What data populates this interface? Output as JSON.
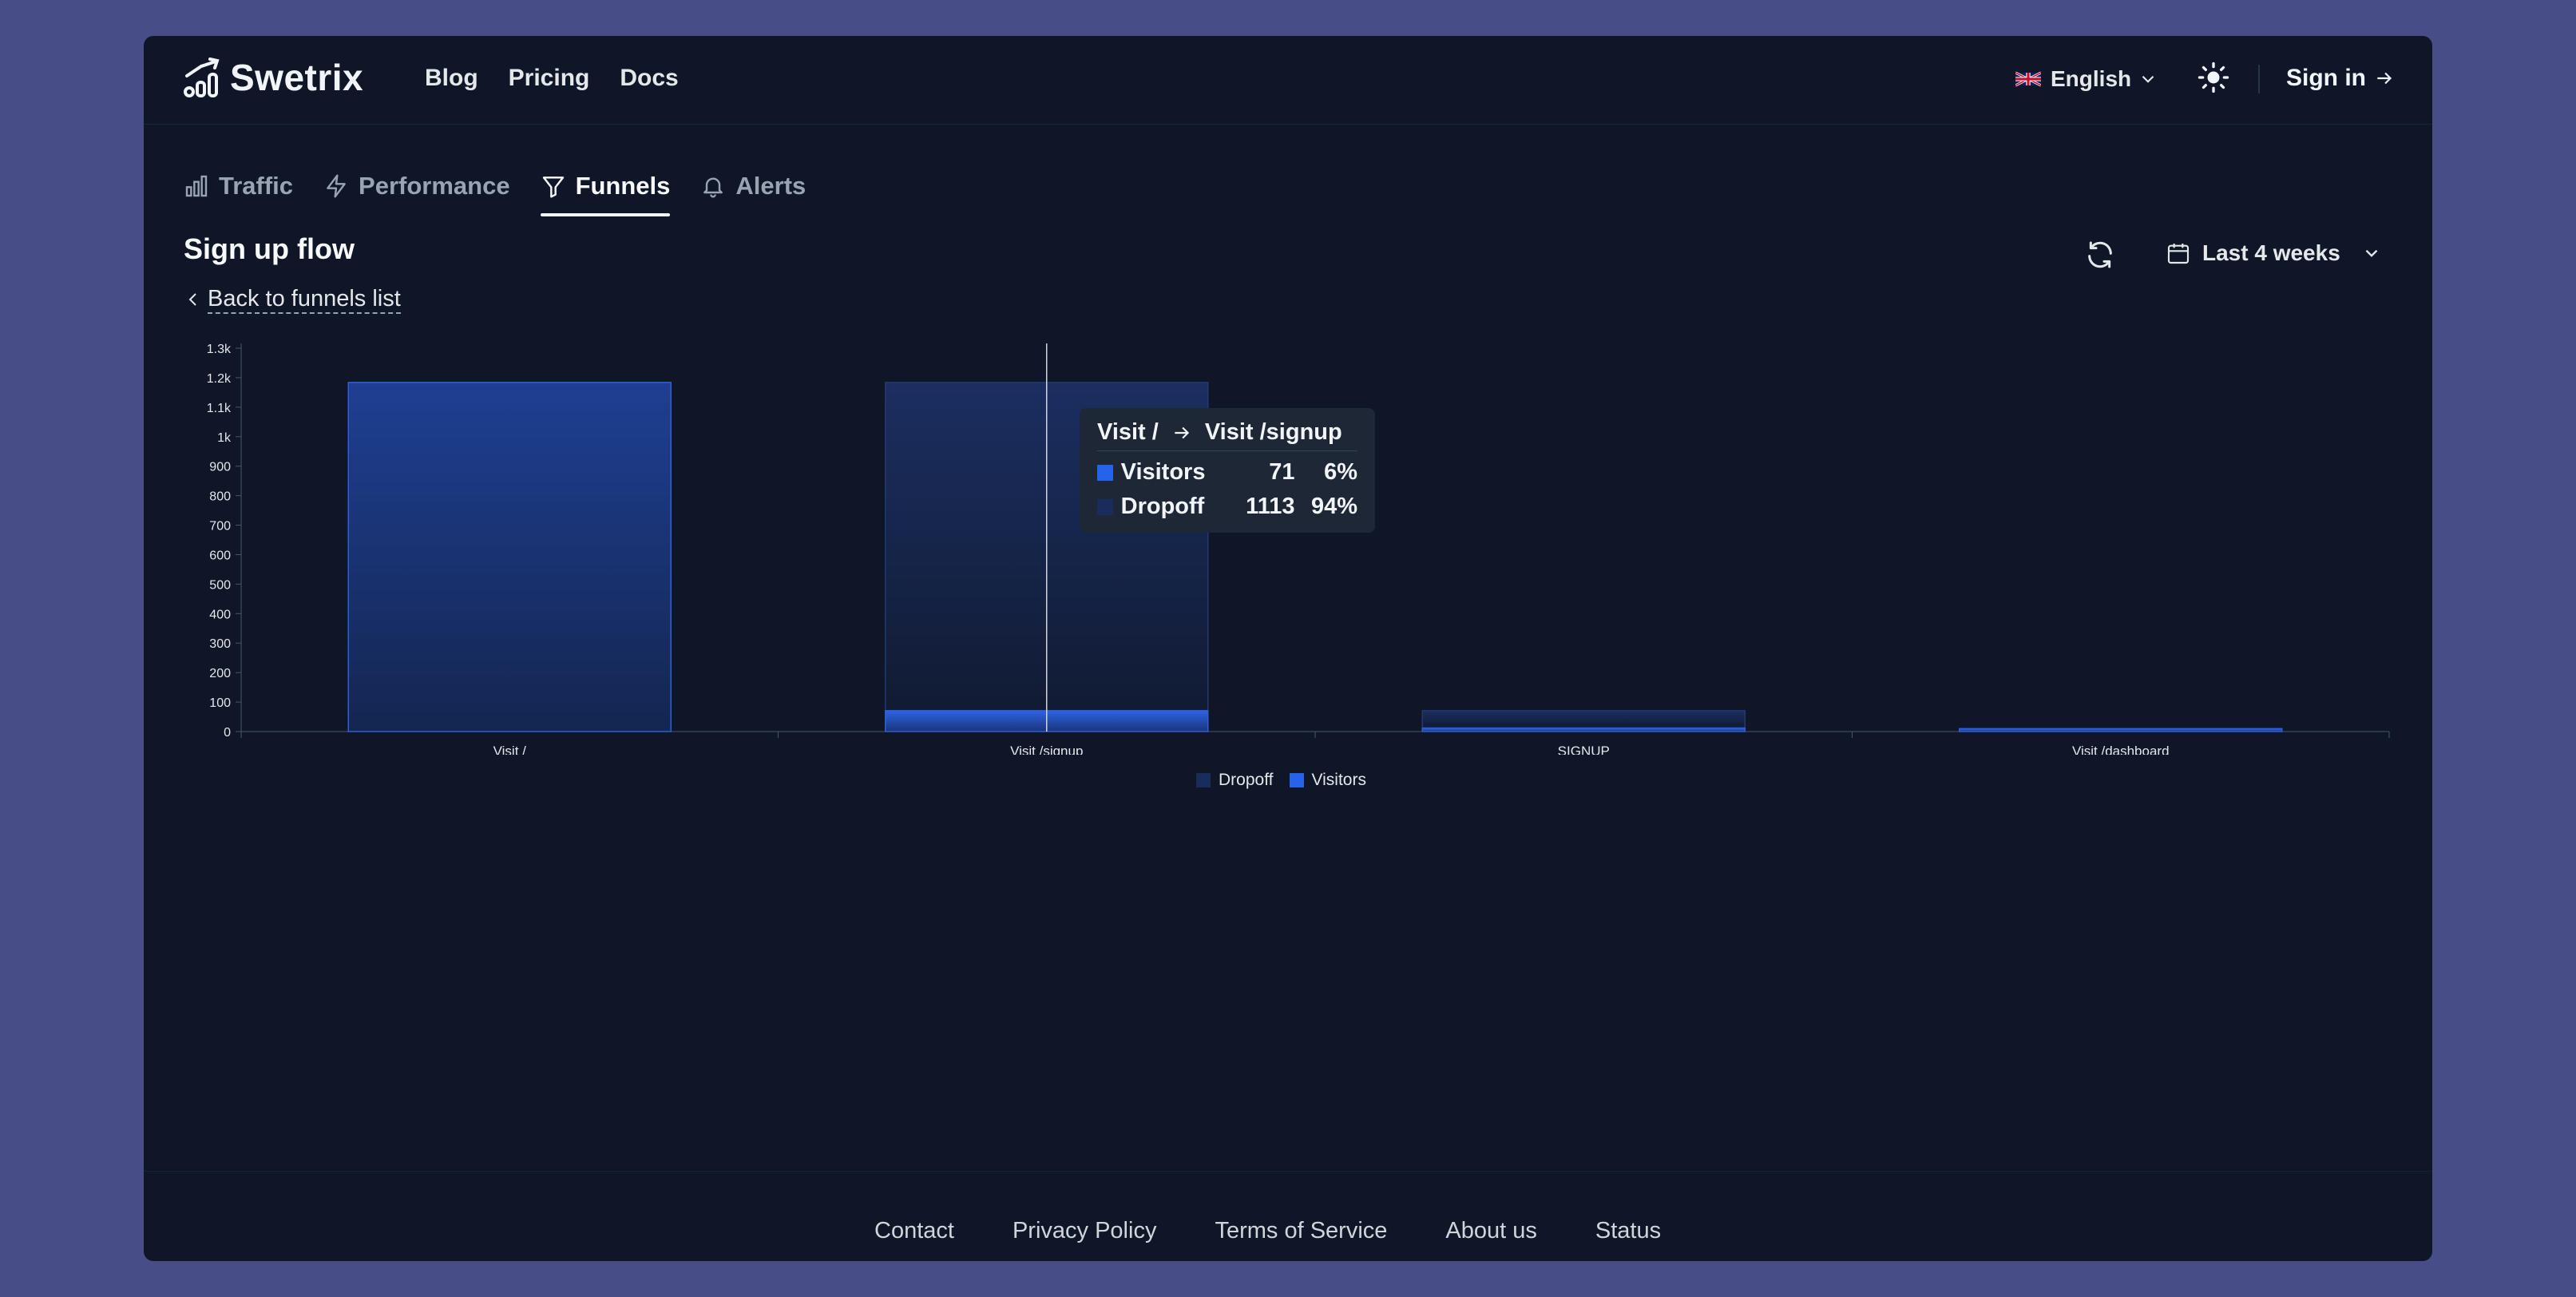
{
  "brand": {
    "name": "Swetrix"
  },
  "nav": {
    "items": [
      "Blog",
      "Pricing",
      "Docs"
    ]
  },
  "header": {
    "language": "English",
    "signin": "Sign in"
  },
  "tabs": [
    {
      "label": "Traffic",
      "active": false
    },
    {
      "label": "Performance",
      "active": false
    },
    {
      "label": "Funnels",
      "active": true
    },
    {
      "label": "Alerts",
      "active": false
    }
  ],
  "funnel": {
    "title": "Sign up flow",
    "back_label": "Back to funnels list"
  },
  "period": {
    "label": "Last 4 weeks"
  },
  "colors": {
    "visitors": "#2563eb",
    "dropoff": "#1a2c5c",
    "background": "#0e1628"
  },
  "tooltip": {
    "from": "Visit /",
    "to": "Visit /signup",
    "rows": [
      {
        "name": "Visitors",
        "value": "71",
        "pct": "6%"
      },
      {
        "name": "Dropoff",
        "value": "1113",
        "pct": "94%"
      }
    ]
  },
  "chart_data": {
    "type": "bar",
    "stacked": true,
    "categories": [
      "Visit /",
      "Visit /signup",
      "SIGNUP",
      "Visit /dashboard"
    ],
    "series": [
      {
        "name": "Dropoff",
        "values": [
          0,
          1113,
          59,
          0
        ]
      },
      {
        "name": "Visitors",
        "values": [
          1184,
          71,
          12,
          10
        ]
      }
    ],
    "yticks": [
      "0",
      "100",
      "200",
      "300",
      "400",
      "500",
      "600",
      "700",
      "800",
      "900",
      "1k",
      "1.1k",
      "1.2k",
      "1.3k"
    ],
    "ylim": [
      0,
      1300
    ],
    "legend": [
      "Dropoff",
      "Visitors"
    ],
    "legend_position": "bottom-center"
  },
  "footer": {
    "links": [
      "Contact",
      "Privacy Policy",
      "Terms of Service",
      "About us",
      "Status"
    ]
  }
}
